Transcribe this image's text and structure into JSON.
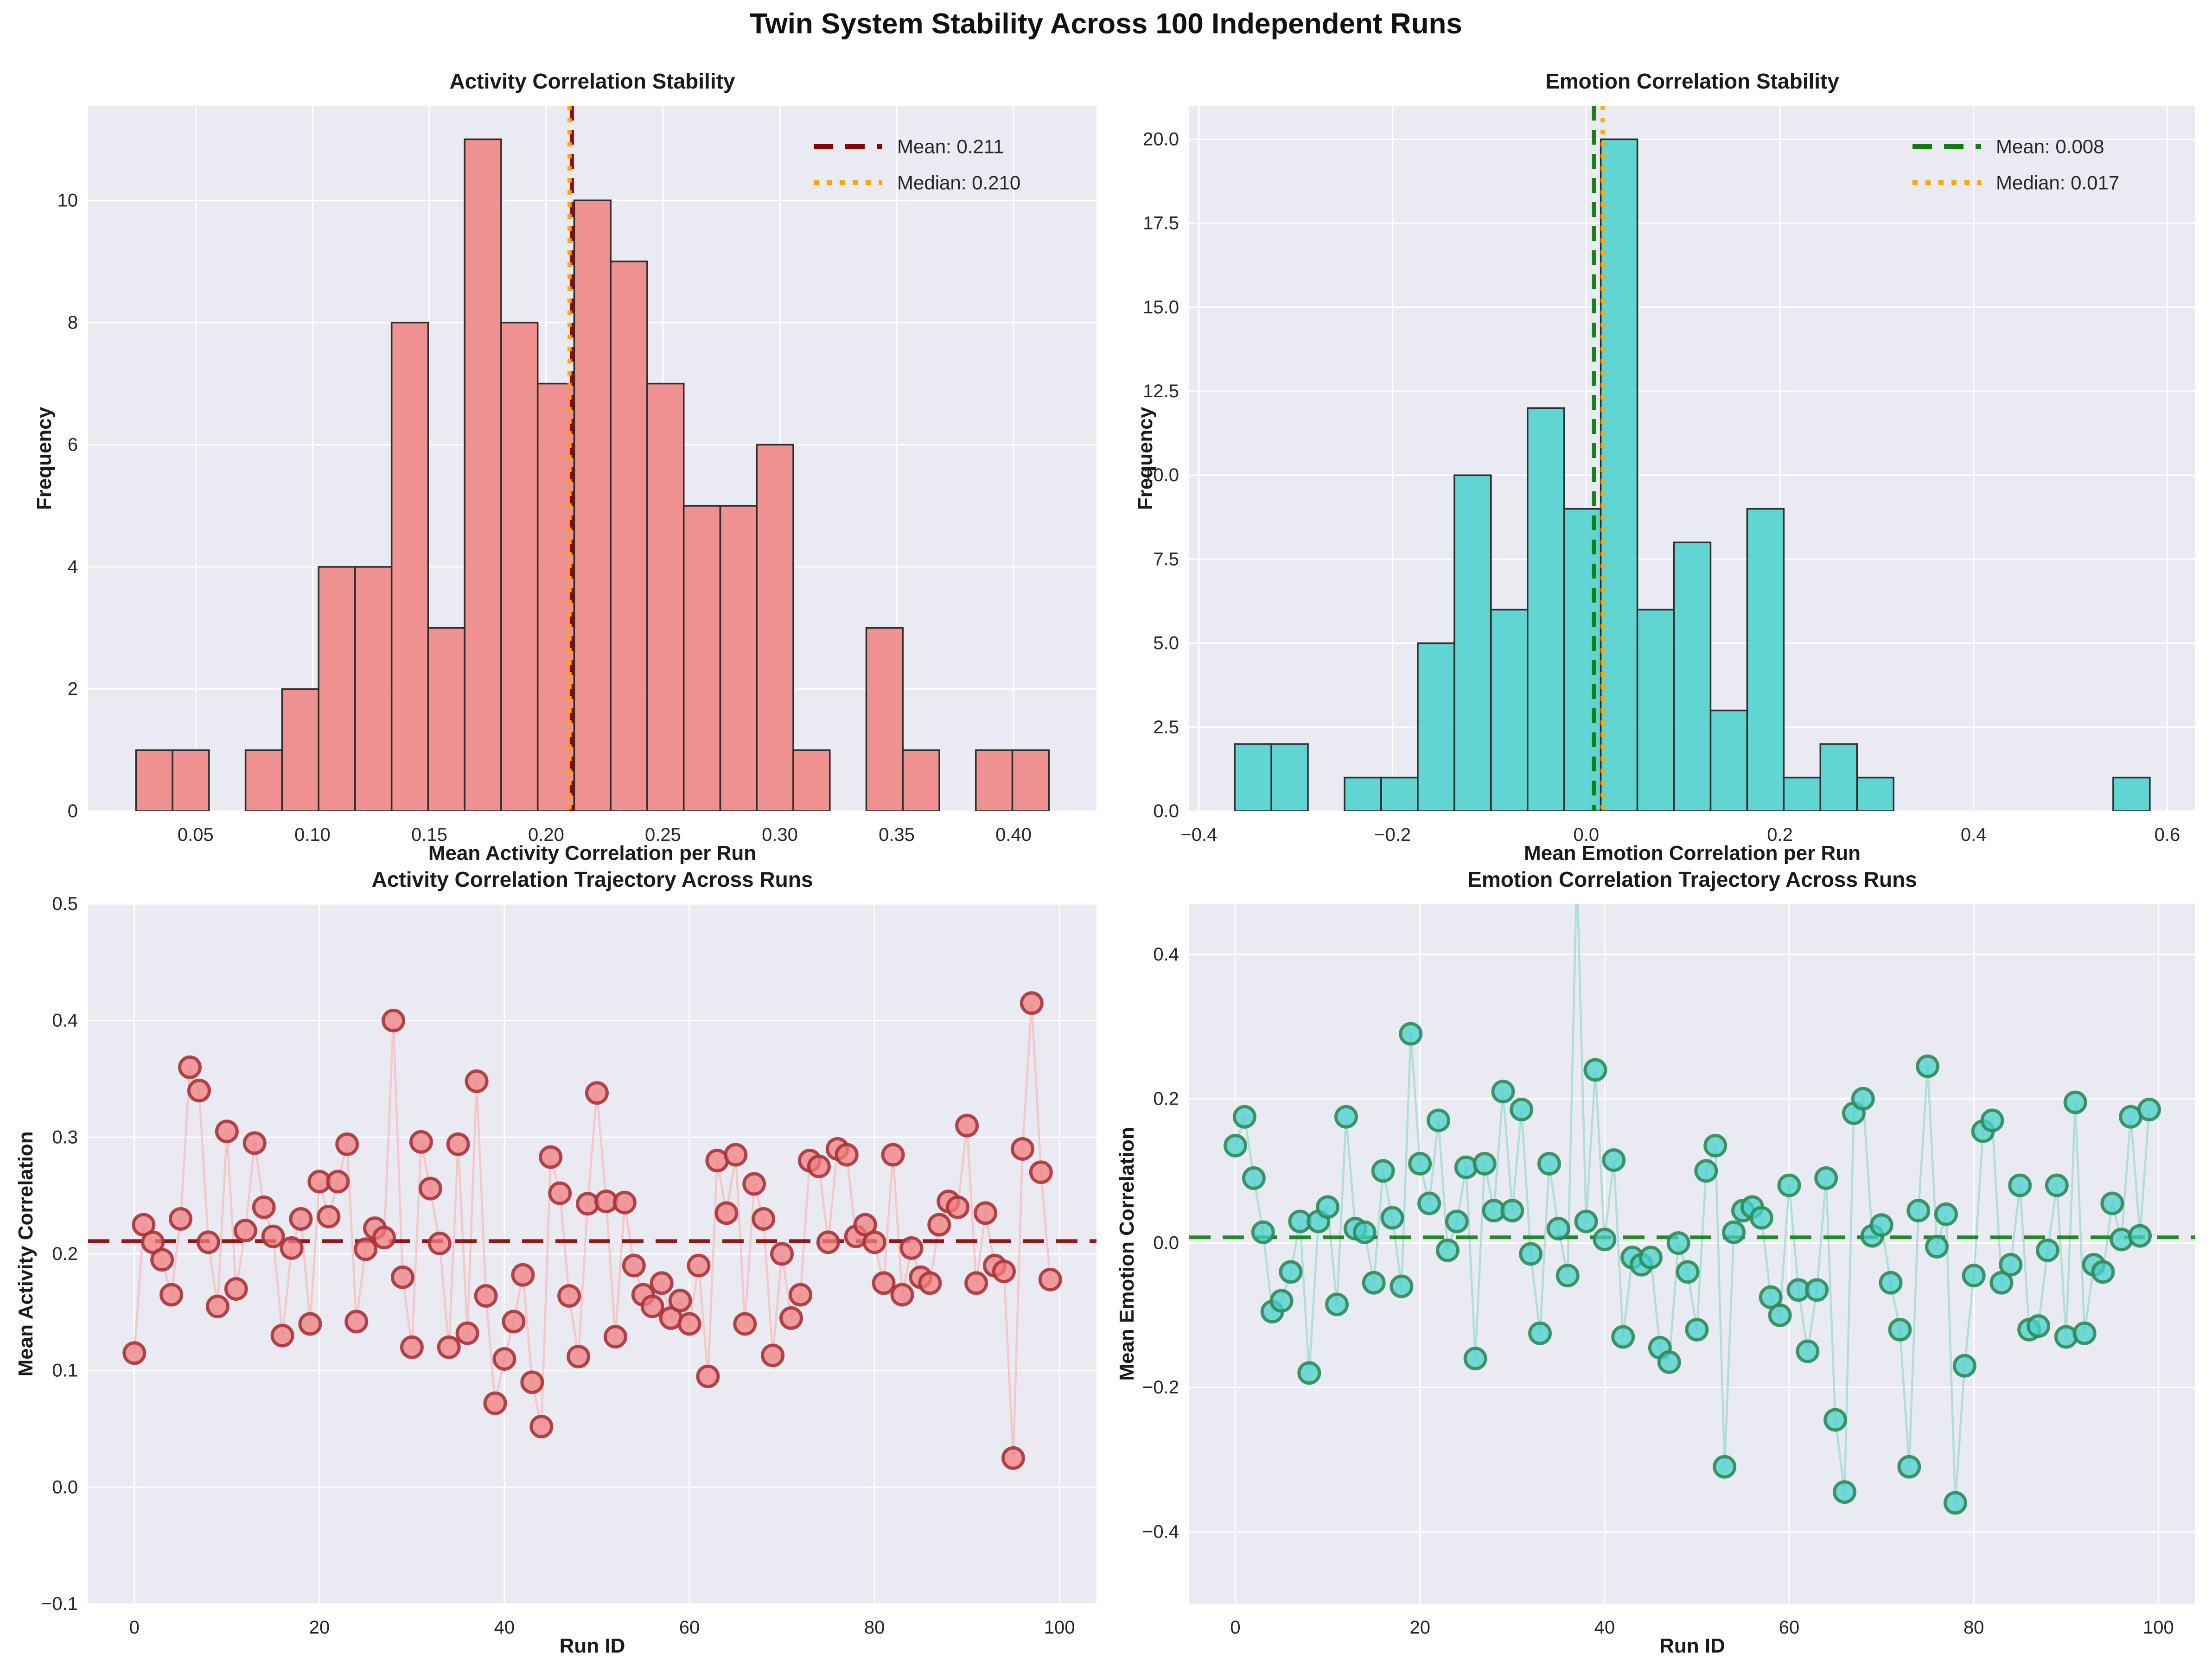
{
  "figure": {
    "suptitle": "Twin System Stability Across 100 Independent Runs",
    "background": "#ffffff",
    "axes_background": "#eaeaf2",
    "grid_color": "#ffffff",
    "text_color": "#1a1a1a"
  },
  "chart_data": [
    {
      "type": "bar",
      "title": "Activity Correlation Stability",
      "xlabel": "Mean Activity Correlation per Run",
      "ylabel": "Frequency",
      "bin_start": 0.0245,
      "bin_width": 0.015625,
      "counts": [
        1,
        1,
        0,
        1,
        2,
        4,
        4,
        8,
        3,
        11,
        8,
        7,
        10,
        9,
        7,
        5,
        5,
        6,
        1,
        0,
        3,
        1,
        0,
        1,
        1
      ],
      "xlim": [
        0.004,
        0.4355
      ],
      "ylim": [
        0,
        11.55
      ],
      "xticks": {
        "values": [
          0.05,
          0.1,
          0.15,
          0.2,
          0.25,
          0.3,
          0.35,
          0.4
        ],
        "labels": [
          "0.05",
          "0.10",
          "0.15",
          "0.20",
          "0.25",
          "0.30",
          "0.35",
          "0.40"
        ]
      },
      "yticks": {
        "values": [
          0,
          2,
          4,
          6,
          8,
          10
        ],
        "labels": [
          "0",
          "2",
          "4",
          "6",
          "8",
          "10"
        ]
      },
      "mean": 0.211,
      "median": 0.21,
      "legend": [
        {
          "label": "Mean: 0.211",
          "color": "#8b0000",
          "style": "dashed"
        },
        {
          "label": "Median: 0.210",
          "color": "#ffa500",
          "style": "dotted"
        }
      ],
      "bar_fill": "#f08080",
      "bar_edge": "#2e2e2e",
      "mean_color": "#8b0000",
      "median_color": "#ffa500",
      "legend_position": "upper right",
      "grid": true
    },
    {
      "type": "bar",
      "title": "Emotion Correlation Stability",
      "xlabel": "Mean Emotion Correlation per Run",
      "ylabel": "Frequency",
      "bin_start": -0.363,
      "bin_width": 0.0378,
      "counts": [
        2,
        2,
        0,
        1,
        1,
        5,
        10,
        6,
        12,
        9,
        20,
        6,
        8,
        3,
        9,
        1,
        2,
        1,
        0,
        0,
        0,
        0,
        0,
        0,
        1
      ],
      "xlim": [
        -0.41,
        0.629
      ],
      "ylim": [
        0,
        21
      ],
      "xticks": {
        "values": [
          -0.4,
          -0.2,
          0.0,
          0.2,
          0.4,
          0.6
        ],
        "labels": [
          "−0.4",
          "−0.2",
          "0.0",
          "0.2",
          "0.4",
          "0.6"
        ]
      },
      "yticks": {
        "values": [
          0,
          2.5,
          5,
          7.5,
          10,
          12.5,
          15,
          17.5,
          20
        ],
        "labels": [
          "0.0",
          "2.5",
          "5.0",
          "7.5",
          "10.0",
          "12.5",
          "15.0",
          "17.5",
          "20.0"
        ]
      },
      "mean": 0.008,
      "median": 0.017,
      "legend": [
        {
          "label": "Mean: 0.008",
          "color": "#0e7d0e",
          "style": "dashed"
        },
        {
          "label": "Median: 0.017",
          "color": "#ffa500",
          "style": "dotted"
        }
      ],
      "bar_fill": "#48d1cc",
      "bar_edge": "#2e2e2e",
      "mean_color": "#0e7d0e",
      "median_color": "#ffa500",
      "legend_position": "upper right",
      "grid": true
    },
    {
      "type": "line",
      "title": "Activity Correlation Trajectory Across Runs",
      "xlabel": "Run ID",
      "ylabel": "Mean Activity Correlation",
      "values": [
        0.115,
        0.225,
        0.21,
        0.195,
        0.165,
        0.23,
        0.36,
        0.34,
        0.21,
        0.155,
        0.305,
        0.17,
        0.22,
        0.295,
        0.24,
        0.215,
        0.13,
        0.205,
        0.23,
        0.14,
        0.262,
        0.232,
        0.262,
        0.294,
        0.142,
        0.204,
        0.222,
        0.214,
        0.4,
        0.18,
        0.12,
        0.296,
        0.256,
        0.209,
        0.12,
        0.294,
        0.132,
        0.348,
        0.164,
        0.072,
        0.11,
        0.142,
        0.182,
        0.09,
        0.052,
        0.283,
        0.252,
        0.164,
        0.112,
        0.243,
        0.338,
        0.245,
        0.129,
        0.244,
        0.19,
        0.165,
        0.155,
        0.175,
        0.145,
        0.16,
        0.14,
        0.19,
        0.095,
        0.28,
        0.235,
        0.285,
        0.14,
        0.26,
        0.23,
        0.113,
        0.2,
        0.145,
        0.165,
        0.28,
        0.275,
        0.21,
        0.29,
        0.285,
        0.215,
        0.225,
        0.21,
        0.175,
        0.285,
        0.165,
        0.205,
        0.18,
        0.175,
        0.225,
        0.245,
        0.24,
        0.31,
        0.175,
        0.235,
        0.19,
        0.185,
        0.025,
        0.29,
        0.415,
        0.27,
        0.178
      ],
      "xlim": [
        -5,
        104
      ],
      "ylim": [
        -0.1,
        0.5
      ],
      "xticks": {
        "values": [
          0,
          20,
          40,
          60,
          80,
          100
        ],
        "labels": [
          "0",
          "20",
          "40",
          "60",
          "80",
          "100"
        ]
      },
      "yticks": {
        "values": [
          -0.1,
          0,
          0.1,
          0.2,
          0.3,
          0.4,
          0.5
        ],
        "labels": [
          "−0.1",
          "0.0",
          "0.1",
          "0.2",
          "0.3",
          "0.4",
          "0.5"
        ]
      },
      "mean": 0.211,
      "marker_fill": "#f08080",
      "marker_edge": "#aa3338",
      "line_color": "#f5c4c4",
      "mean_color": "#8b0000",
      "grid": true
    },
    {
      "type": "line",
      "title": "Emotion Correlation Trajectory Across Runs",
      "xlabel": "Run ID",
      "ylabel": "Mean Emotion Correlation",
      "values": [
        0.135,
        0.175,
        0.09,
        0.015,
        -0.095,
        -0.08,
        -0.04,
        0.03,
        -0.18,
        0.03,
        0.05,
        -0.085,
        0.175,
        0.02,
        0.015,
        -0.055,
        0.1,
        0.035,
        -0.06,
        0.29,
        0.11,
        0.055,
        0.17,
        -0.01,
        0.03,
        0.105,
        -0.16,
        0.11,
        0.045,
        0.21,
        0.045,
        0.185,
        -0.015,
        -0.125,
        0.11,
        0.02,
        -0.045,
        0.52,
        0.03,
        0.24,
        0.005,
        0.115,
        -0.13,
        -0.02,
        -0.03,
        -0.02,
        -0.145,
        -0.165,
        0.0,
        -0.04,
        -0.12,
        0.1,
        0.135,
        -0.31,
        0.015,
        0.045,
        0.05,
        0.035,
        -0.075,
        -0.1,
        0.08,
        -0.065,
        -0.15,
        -0.065,
        0.09,
        -0.245,
        -0.345,
        0.18,
        0.2,
        0.01,
        0.025,
        -0.055,
        -0.12,
        -0.31,
        0.045,
        0.245,
        -0.005,
        0.04,
        -0.36,
        -0.17,
        -0.045,
        0.155,
        0.17,
        -0.055,
        -0.03,
        0.08,
        -0.12,
        -0.115,
        -0.01,
        0.08,
        -0.13,
        0.195,
        -0.125,
        -0.03,
        -0.04,
        0.055,
        0.005,
        0.175,
        0.01,
        0.185
      ],
      "xlim": [
        -5,
        104
      ],
      "ylim": [
        -0.5,
        0.47
      ],
      "xticks": {
        "values": [
          0,
          20,
          40,
          60,
          80,
          100
        ],
        "labels": [
          "0",
          "20",
          "40",
          "60",
          "80",
          "100"
        ]
      },
      "yticks": {
        "values": [
          -0.4,
          -0.2,
          0,
          0.2,
          0.4
        ],
        "labels": [
          "−0.4",
          "−0.2",
          "0.0",
          "0.2",
          "0.4"
        ]
      },
      "mean": 0.008,
      "marker_fill": "#48d1cc",
      "marker_edge": "#2e8b57",
      "line_color": "#abdcd8",
      "mean_color": "#0e7d0e",
      "grid": true
    }
  ]
}
